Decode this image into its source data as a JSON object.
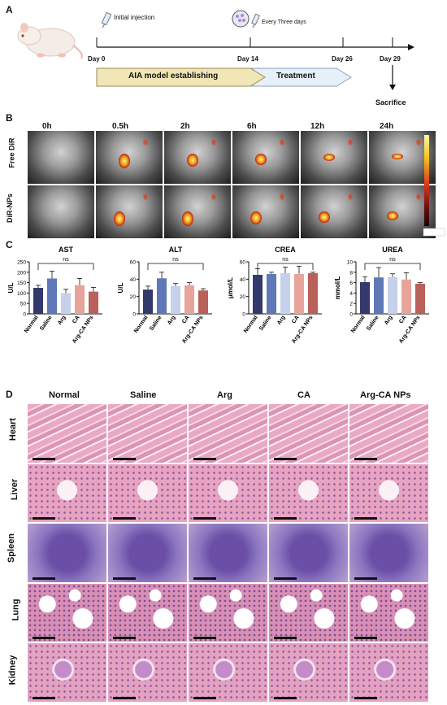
{
  "panelA": {
    "label": "A",
    "initial": "Initial injection",
    "every": "Every Three days",
    "days": [
      "Day 0",
      "Day 14",
      "Day 26",
      "Day 29"
    ],
    "phase1": "AIA model establishing",
    "phase2": "Treatment",
    "end": "Sacrifice"
  },
  "panelB": {
    "label": "B",
    "times": [
      "0h",
      "0.5h",
      "2h",
      "6h",
      "12h",
      "24h"
    ],
    "rows": [
      "Free DiR",
      "DiR-NPs"
    ]
  },
  "panelC": {
    "label": "C",
    "ns": "ns"
  },
  "chart_data": [
    {
      "type": "bar",
      "title": "AST",
      "ylabel": "U/L",
      "categories": [
        "Normal",
        "Saline",
        "Arg",
        "CA",
        "Arg-CA NPs"
      ],
      "values": [
        125,
        170,
        100,
        138,
        107
      ],
      "errors": [
        12,
        35,
        18,
        32,
        20
      ],
      "ylim": [
        0,
        250
      ],
      "ticks": [
        0,
        50,
        100,
        150,
        200,
        250
      ]
    },
    {
      "type": "bar",
      "title": "ALT",
      "ylabel": "U/L",
      "categories": [
        "Normal",
        "Saline",
        "Arg",
        "CA",
        "Arg-CA NPs"
      ],
      "values": [
        28,
        41,
        32,
        33,
        27
      ],
      "errors": [
        4,
        7,
        3,
        3,
        2
      ],
      "ylim": [
        0,
        60
      ],
      "ticks": [
        0,
        20,
        40,
        60
      ]
    },
    {
      "type": "bar",
      "title": "CREA",
      "ylabel": "μmol/L",
      "categories": [
        "Normal",
        "Saline",
        "Arg",
        "CA",
        "Arg-CA NPs"
      ],
      "values": [
        45,
        46,
        47,
        46,
        47
      ],
      "errors": [
        7,
        2,
        7,
        9,
        1
      ],
      "ylim": [
        0,
        60
      ],
      "ticks": [
        0,
        20,
        40,
        60
      ]
    },
    {
      "type": "bar",
      "title": "UREA",
      "ylabel": "mmol/L",
      "categories": [
        "Normal",
        "Saline",
        "Arg",
        "CA",
        "Arg-CA NPs"
      ],
      "values": [
        6.1,
        7.0,
        7.1,
        6.6,
        5.8
      ],
      "errors": [
        1.0,
        1.9,
        0.6,
        1.3,
        0.2
      ],
      "ylim": [
        0,
        10
      ],
      "ticks": [
        0,
        2,
        4,
        6,
        8,
        10
      ]
    }
  ],
  "bar_colors": [
    "#333a6b",
    "#5e78b8",
    "#c5d0ea",
    "#e8a49a",
    "#b9605a"
  ],
  "panelD": {
    "label": "D",
    "cols": [
      "Normal",
      "Saline",
      "Arg",
      "CA",
      "Arg-CA NPs"
    ],
    "rows": [
      "Heart",
      "Liver",
      "Spleen",
      "Lung",
      "Kidney"
    ]
  }
}
